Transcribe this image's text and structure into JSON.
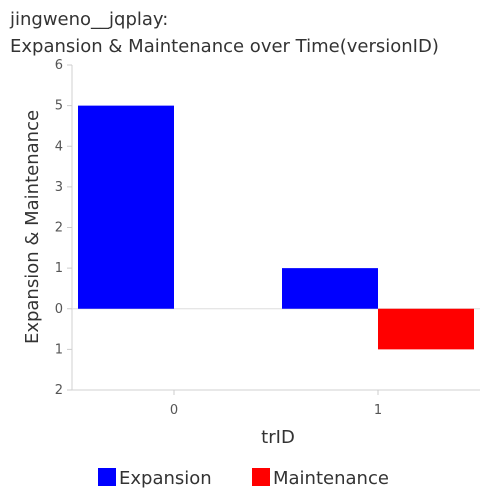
{
  "chart_data": {
    "type": "bar",
    "title_lines": [
      "jingweno__jqplay:",
      "Expansion & Maintenance over Time(versionID)"
    ],
    "xlabel": "trID",
    "ylabel": "Expansion & Maintenance",
    "categories": [
      "0",
      "1"
    ],
    "series": [
      {
        "name": "Expansion",
        "color": "#0000ff",
        "values": [
          5,
          1
        ]
      },
      {
        "name": "Maintenance",
        "color": "#ff0000",
        "values": [
          0,
          -1
        ]
      }
    ],
    "ylim": [
      -2,
      6
    ],
    "y_ticks": [
      6,
      5,
      4,
      3,
      2,
      1,
      0,
      -1,
      -2
    ],
    "y_tick_labels": [
      "6",
      "5",
      "4",
      "3",
      "2",
      "1",
      "0",
      "1",
      "2"
    ],
    "grid": false,
    "legend_position": "bottom"
  }
}
